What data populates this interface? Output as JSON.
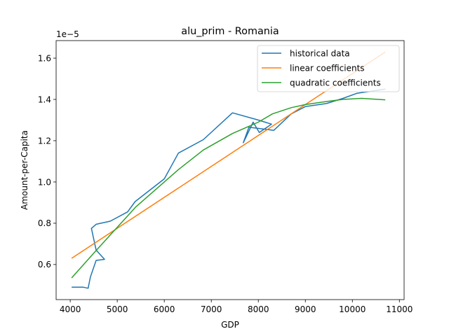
{
  "chart_data": {
    "type": "line",
    "title": "alu_prim - Romania",
    "xlabel": "GDP",
    "ylabel": "Amount-per-Capita",
    "offset_label": "1e−5",
    "xlim": [
      3700,
      11100
    ],
    "ylim": [
      0.43,
      1.685
    ],
    "xticks": [
      4000,
      5000,
      6000,
      7000,
      8000,
      9000,
      10000,
      11000
    ],
    "xtick_labels": [
      "4000",
      "5000",
      "6000",
      "7000",
      "8000",
      "9000",
      "10000",
      "11000"
    ],
    "yticks": [
      0.6,
      0.8,
      1.0,
      1.2,
      1.4,
      1.6
    ],
    "ytick_labels": [
      "0.6",
      "0.8",
      "1.0",
      "1.2",
      "1.4",
      "1.6"
    ],
    "legend_position": "top-right",
    "series": [
      {
        "name": "historical data",
        "color": "#1f77b4",
        "x": [
          4030,
          4280,
          4380,
          4430,
          4550,
          4730,
          4550,
          4450,
          4550,
          4850,
          5220,
          5380,
          6000,
          6300,
          6830,
          7450,
          8000,
          8280,
          8020,
          7890,
          7680,
          7800,
          8330,
          8700,
          9000,
          9450,
          9800,
          10100,
          10700
        ],
        "y": [
          0.49,
          0.49,
          0.485,
          0.54,
          0.62,
          0.625,
          0.67,
          0.775,
          0.795,
          0.81,
          0.855,
          0.905,
          1.015,
          1.14,
          1.205,
          1.335,
          1.3,
          1.28,
          1.24,
          1.29,
          1.19,
          1.265,
          1.25,
          1.33,
          1.365,
          1.38,
          1.405,
          1.43,
          1.45
        ]
      },
      {
        "name": "linear coefficients",
        "color": "#ff7f0e",
        "x": [
          4030,
          10700
        ],
        "y": [
          0.63,
          1.63
        ]
      },
      {
        "name": "quadratic coefficients",
        "color": "#2ca02c",
        "x": [
          4030,
          4600,
          5400,
          6300,
          6830,
          7450,
          7800,
          8000,
          8300,
          8700,
          9000,
          9450,
          9800,
          10200,
          10700
        ],
        "y": [
          0.535,
          0.68,
          0.88,
          1.06,
          1.155,
          1.235,
          1.27,
          1.29,
          1.33,
          1.36,
          1.375,
          1.39,
          1.4,
          1.405,
          1.398
        ]
      }
    ]
  }
}
